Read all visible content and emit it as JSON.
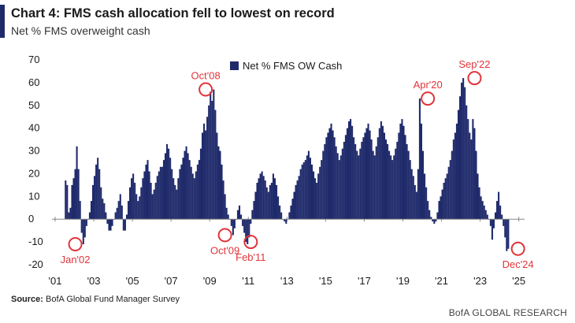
{
  "header": {
    "title": "Chart 4: FMS cash allocation fell to lowest on record",
    "subtitle": "Net % FMS overweight cash"
  },
  "footer": {
    "source_label": "Source:",
    "source_text": "BofA Global Fund Manager Survey",
    "brand": "BofA GLOBAL RESEARCH"
  },
  "colors": {
    "bar": "#1f2a6b",
    "highlight": "#e0343a",
    "axis": "#888888"
  },
  "chart_data": {
    "type": "bar",
    "title": "Chart 4: FMS cash allocation fell to lowest on record",
    "subtitle": "Net % FMS overweight cash",
    "xlabel": "",
    "ylabel": "",
    "xlim": [
      2001.0,
      2025.3
    ],
    "ylim": [
      -20,
      70
    ],
    "yticks": [
      70,
      60,
      50,
      40,
      30,
      20,
      10,
      0,
      -10,
      -20
    ],
    "xticks": [
      "'01",
      "'03",
      "'05",
      "'07",
      "'09",
      "'11",
      "'13",
      "'15",
      "'17",
      "'19",
      "'21",
      "'23",
      "'25"
    ],
    "xtick_years": [
      2001,
      2003,
      2005,
      2007,
      2009,
      2011,
      2013,
      2015,
      2017,
      2019,
      2021,
      2023,
      2025
    ],
    "grid": false,
    "legend": {
      "position": "top-center",
      "entries": [
        "Net % FMS OW Cash"
      ]
    },
    "series": [
      {
        "name": "Net % FMS OW Cash",
        "frequency": "monthly",
        "start": "2001-07",
        "values": [
          17,
          15,
          3,
          5,
          15,
          18,
          22,
          32,
          22,
          8,
          -6,
          -11,
          -8,
          -3,
          0,
          3,
          8,
          15,
          19,
          24,
          27,
          22,
          14,
          9,
          7,
          3,
          -2,
          -5,
          -5,
          -3,
          0,
          3,
          5,
          8,
          11,
          6,
          -5,
          -5,
          2,
          8,
          14,
          18,
          20,
          16,
          11,
          8,
          10,
          14,
          18,
          21,
          24,
          26,
          21,
          16,
          11,
          13,
          16,
          19,
          21,
          23,
          23,
          26,
          29,
          33,
          31,
          27,
          22,
          18,
          15,
          13,
          18,
          22,
          24,
          27,
          30,
          32,
          29,
          26,
          23,
          20,
          18,
          21,
          24,
          26,
          31,
          38,
          42,
          39,
          45,
          50,
          56,
          52,
          57,
          48,
          38,
          32,
          30,
          24,
          17,
          11,
          5,
          2,
          0,
          -3,
          -7,
          -4,
          0,
          4,
          6,
          2,
          -3,
          -6,
          -10,
          -11,
          -8,
          -2,
          4,
          8,
          12,
          16,
          18,
          20,
          21,
          19,
          17,
          14,
          12,
          15,
          16,
          20,
          18,
          15,
          10,
          6,
          3,
          0,
          -1,
          -2,
          0,
          3,
          6,
          9,
          12,
          15,
          17,
          19,
          22,
          24,
          25,
          26,
          28,
          30,
          27,
          24,
          21,
          18,
          16,
          20,
          23,
          26,
          30,
          33,
          36,
          38,
          40,
          42,
          39,
          36,
          32,
          29,
          26,
          28,
          31,
          34,
          37,
          40,
          43,
          44,
          41,
          36,
          33,
          30,
          28,
          31,
          34,
          36,
          38,
          40,
          42,
          39,
          35,
          30,
          28,
          32,
          36,
          40,
          43,
          41,
          38,
          35,
          33,
          30,
          28,
          26,
          28,
          31,
          34,
          38,
          42,
          44,
          41,
          37,
          33,
          30,
          26,
          22,
          19,
          15,
          12,
          22,
          53,
          42,
          30,
          20,
          14,
          8,
          4,
          1,
          -1,
          -2,
          -1,
          3,
          8,
          10,
          13,
          16,
          18,
          20,
          23,
          26,
          30,
          35,
          38,
          42,
          48,
          54,
          60,
          62,
          58,
          50,
          44,
          38,
          35,
          44,
          40,
          30,
          20,
          14,
          10,
          8,
          6,
          4,
          2,
          0,
          -3,
          -9,
          -4,
          3,
          8,
          12,
          6,
          2,
          -3,
          -8,
          -14,
          -13
        ]
      }
    ],
    "annotations": [
      {
        "label": "Jan'02",
        "x": "2002-01",
        "y": -11,
        "label_side": "below"
      },
      {
        "label": "Oct'08",
        "x": "2008-10",
        "y": 57,
        "label_side": "above"
      },
      {
        "label": "Oct'09",
        "x": "2009-10",
        "y": -7,
        "label_side": "below"
      },
      {
        "label": "Feb'11",
        "x": "2011-02",
        "y": -10,
        "label_side": "below"
      },
      {
        "label": "Apr'20",
        "x": "2020-04",
        "y": 53,
        "label_side": "above"
      },
      {
        "label": "Sep'22",
        "x": "2022-09",
        "y": 62,
        "label_side": "above"
      },
      {
        "label": "Dec'24",
        "x": "2024-12",
        "y": -13,
        "label_side": "below"
      }
    ]
  }
}
